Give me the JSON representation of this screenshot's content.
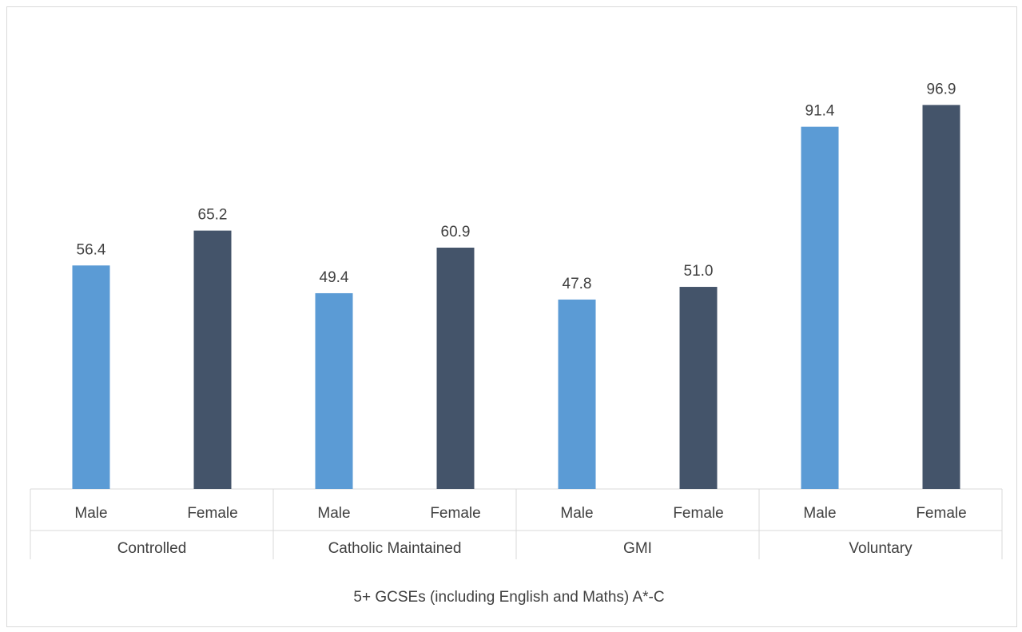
{
  "chart_data": {
    "type": "bar",
    "title": "",
    "ylabel": "",
    "xlabel": "5+ GCSEs (including English and Maths) A*-C",
    "ylim": [
      0,
      100
    ],
    "grid": false,
    "legend": "none",
    "groups": [
      {
        "name": "Controlled",
        "bars": [
          {
            "label": "Male",
            "value": 56.4,
            "value_text": "56.4",
            "color": "#5b9bd5"
          },
          {
            "label": "Female",
            "value": 65.2,
            "value_text": "65.2",
            "color": "#44546a"
          }
        ]
      },
      {
        "name": "Catholic Maintained",
        "bars": [
          {
            "label": "Male",
            "value": 49.4,
            "value_text": "49.4",
            "color": "#5b9bd5"
          },
          {
            "label": "Female",
            "value": 60.9,
            "value_text": "60.9",
            "color": "#44546a"
          }
        ]
      },
      {
        "name": "GMI",
        "bars": [
          {
            "label": "Male",
            "value": 47.8,
            "value_text": "47.8",
            "color": "#5b9bd5"
          },
          {
            "label": "Female",
            "value": 51.0,
            "value_text": "51.0",
            "color": "#44546a"
          }
        ]
      },
      {
        "name": "Voluntary",
        "bars": [
          {
            "label": "Male",
            "value": 91.4,
            "value_text": "91.4",
            "color": "#5b9bd5"
          },
          {
            "label": "Female",
            "value": 96.9,
            "value_text": "96.9",
            "color": "#44546a"
          }
        ]
      }
    ]
  }
}
